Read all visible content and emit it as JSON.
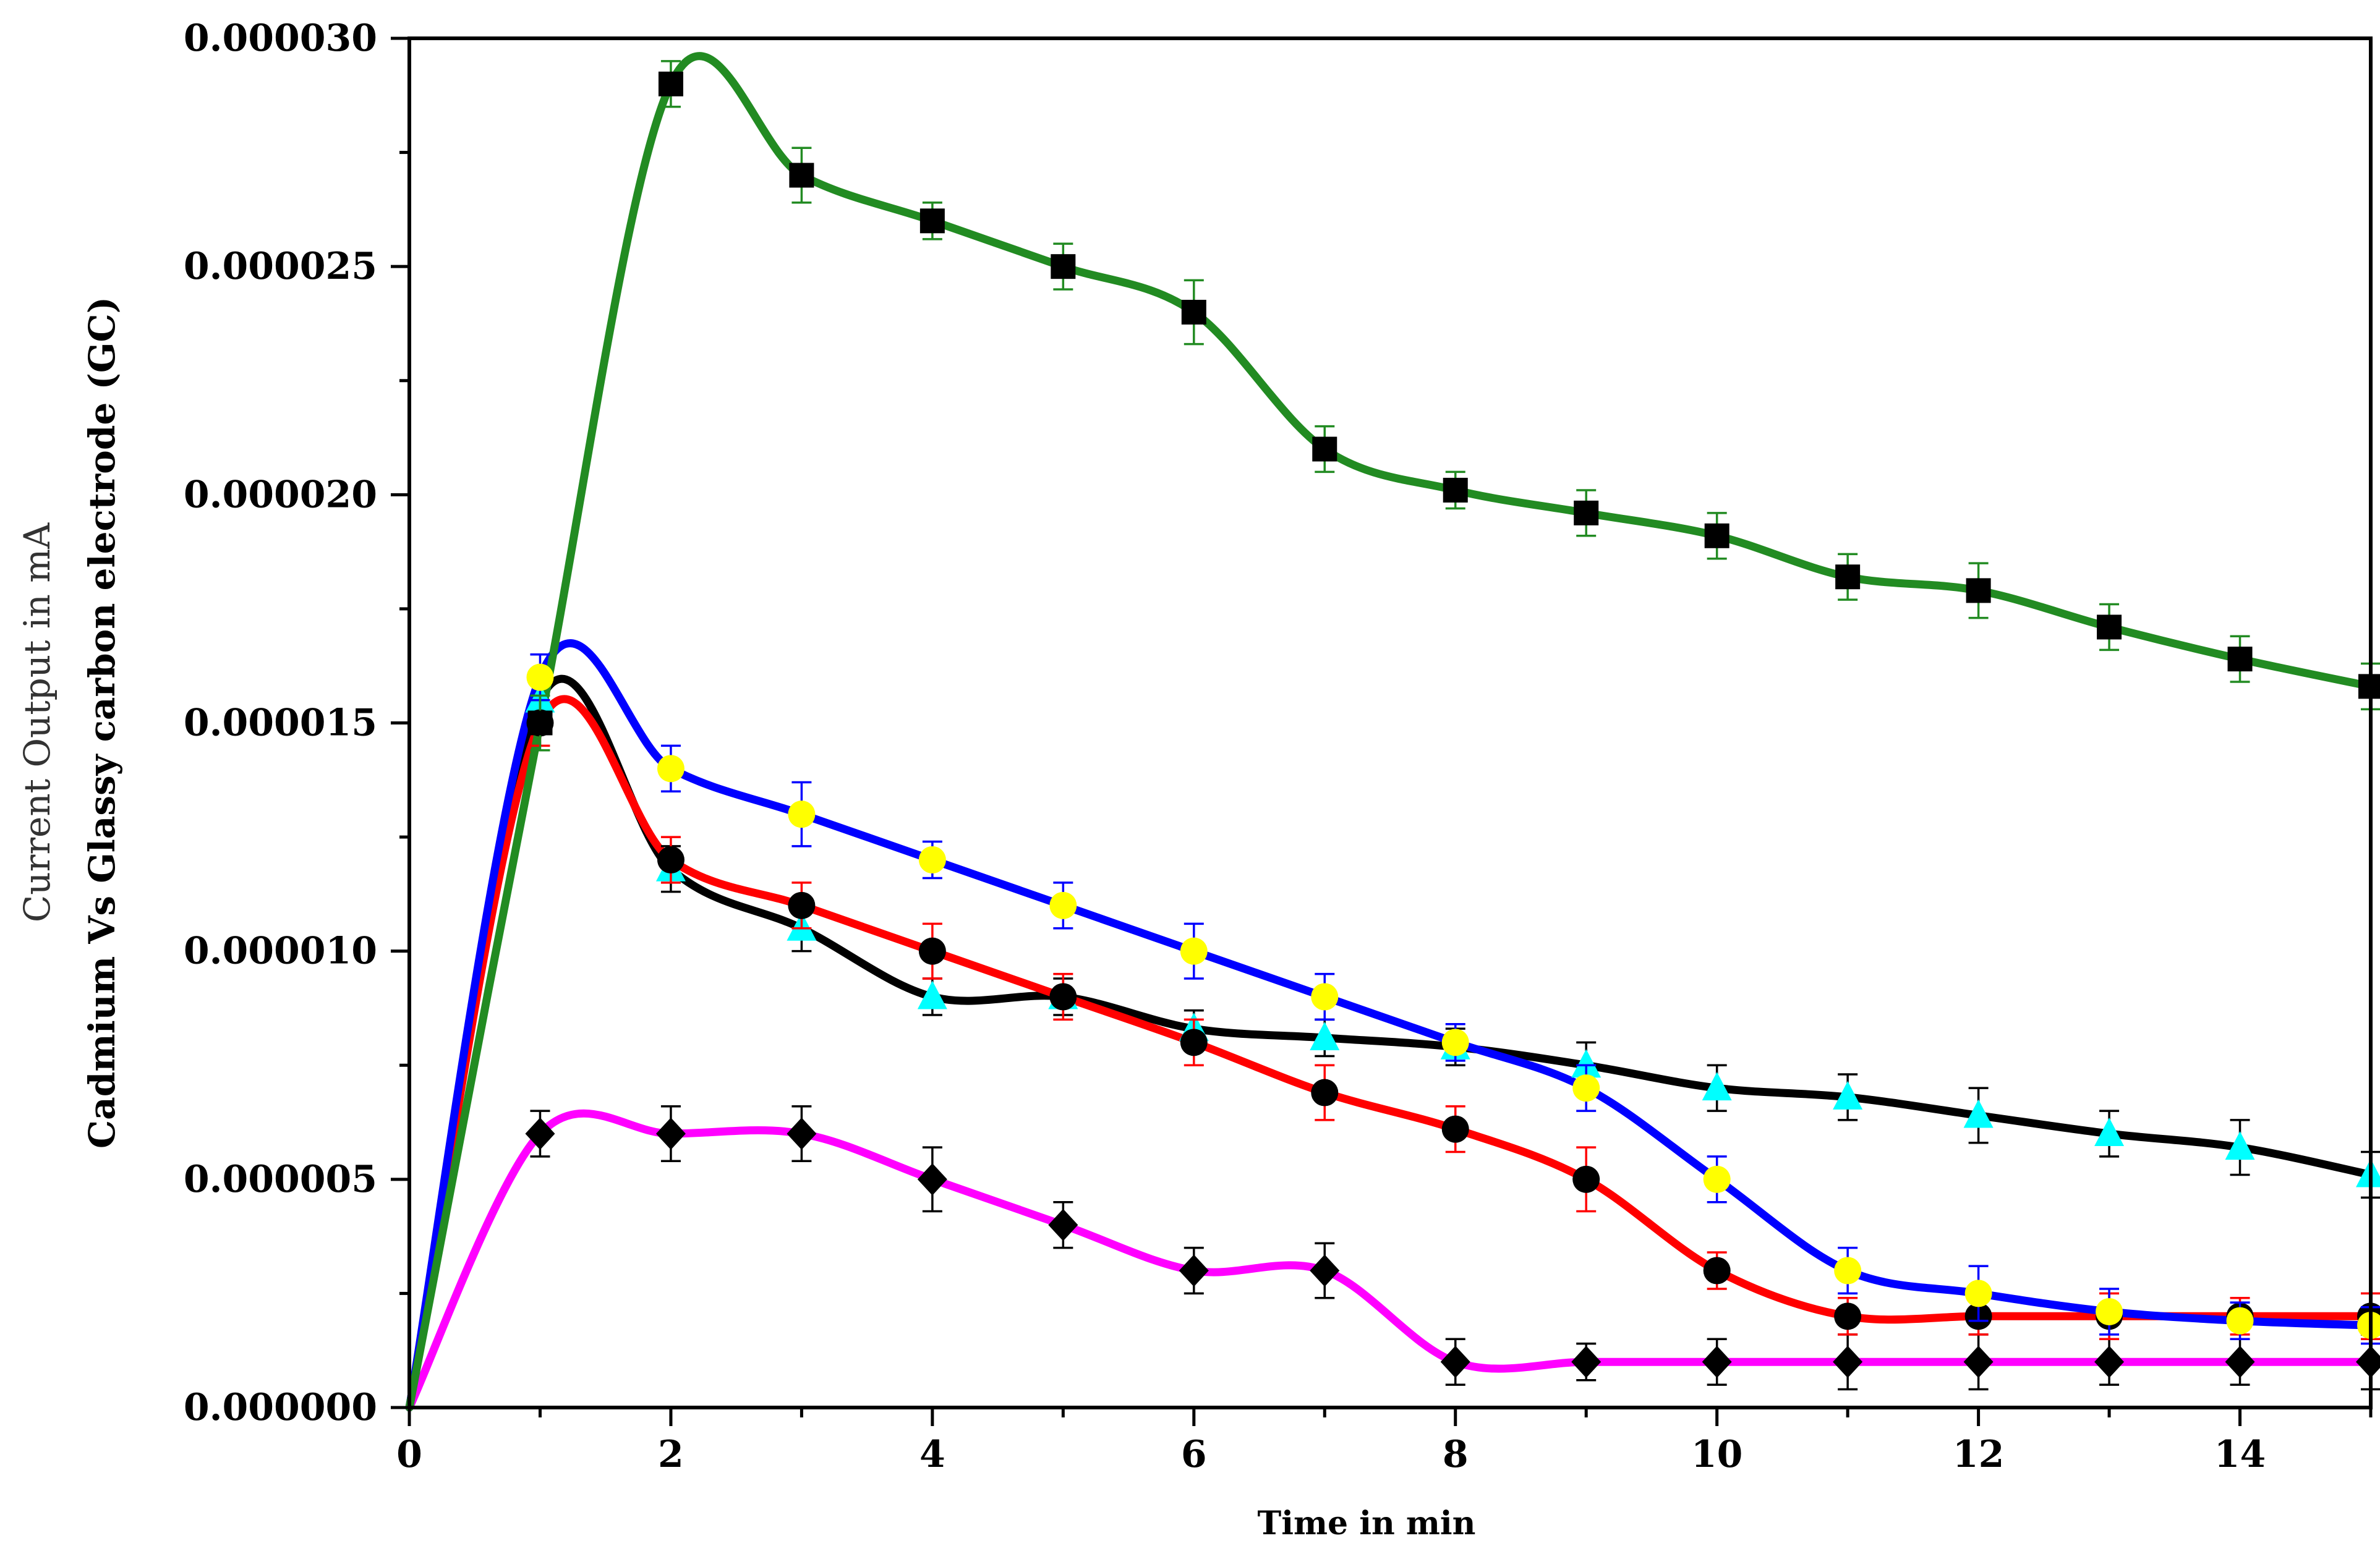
{
  "chart_data": {
    "type": "line",
    "title": "",
    "xlabel": "Time in min",
    "ylabel_line1": "Current Output in mA",
    "ylabel_line2": "Cadmium Vs Glassy carbon electrode (GC)",
    "xlim": [
      0,
      15
    ],
    "ylim": [
      0,
      3e-05
    ],
    "x_ticks": [
      0,
      2,
      4,
      6,
      8,
      10,
      12,
      14
    ],
    "x_tick_labels": [
      "0",
      "2",
      "4",
      "6",
      "8",
      "10",
      "12",
      "14"
    ],
    "y_ticks": [
      0,
      5e-06,
      1e-05,
      1.5e-05,
      2e-05,
      2.5e-05,
      3e-05
    ],
    "y_tick_labels": [
      "0.000000",
      "0.000005",
      "0.000010",
      "0.000015",
      "0.000020",
      "0.000025",
      "0.000030"
    ],
    "grid": false,
    "legend": "none",
    "series": [
      {
        "name": "green-squares",
        "color": "#228B22",
        "marker": "square",
        "marker_color": "#000000",
        "errbar_color": "#228B22",
        "x": [
          0,
          1,
          2,
          3,
          4,
          5,
          6,
          7,
          8,
          9,
          10,
          11,
          12,
          13,
          14,
          15
        ],
        "y": [
          0,
          1.5e-05,
          2.9e-05,
          2.7e-05,
          2.6e-05,
          2.5e-05,
          2.4e-05,
          2.1e-05,
          2.01e-05,
          1.96e-05,
          1.91e-05,
          1.82e-05,
          1.79e-05,
          1.71e-05,
          1.64e-05,
          1.58e-05
        ],
        "err": [
          0,
          6e-07,
          5e-07,
          6e-07,
          4e-07,
          5e-07,
          7e-07,
          5e-07,
          4e-07,
          5e-07,
          5e-07,
          5e-07,
          6e-07,
          5e-07,
          5e-07,
          5e-07
        ]
      },
      {
        "name": "blue-circles",
        "color": "#0000FF",
        "marker": "circle",
        "marker_color": "#FFFF00",
        "errbar_color": "#0000FF",
        "x": [
          0,
          1,
          2,
          3,
          4,
          5,
          6,
          7,
          8,
          9,
          10,
          11,
          12,
          13,
          14,
          15
        ],
        "y": [
          0,
          1.6e-05,
          1.4e-05,
          1.3e-05,
          1.2e-05,
          1.1e-05,
          1e-05,
          9e-06,
          8e-06,
          7e-06,
          5e-06,
          3e-06,
          2.5e-06,
          2.1e-06,
          1.9e-06,
          1.8e-06
        ],
        "err": [
          0,
          5e-07,
          5e-07,
          7e-07,
          4e-07,
          5e-07,
          6e-07,
          5e-07,
          4e-07,
          5e-07,
          5e-07,
          5e-07,
          6e-07,
          5e-07,
          4e-07,
          4e-07
        ]
      },
      {
        "name": "red-circles",
        "color": "#FF0000",
        "marker": "circle",
        "marker_color": "#000000",
        "errbar_color": "#FF0000",
        "x": [
          0,
          1,
          2,
          3,
          4,
          5,
          6,
          7,
          8,
          9,
          10,
          11,
          12,
          13,
          14,
          15
        ],
        "y": [
          0,
          1.5e-05,
          1.2e-05,
          1.1e-05,
          1e-05,
          9e-06,
          8e-06,
          6.9e-06,
          6.1e-06,
          5e-06,
          3e-06,
          2e-06,
          2e-06,
          2e-06,
          2e-06,
          2e-06
        ],
        "err": [
          0,
          5e-07,
          5e-07,
          5e-07,
          6e-07,
          5e-07,
          5e-07,
          6e-07,
          5e-07,
          7e-07,
          4e-07,
          4e-07,
          4e-07,
          5e-07,
          4e-07,
          5e-07
        ]
      },
      {
        "name": "black-triangles",
        "color": "#000000",
        "marker": "triangle",
        "marker_color": "#00FFFF",
        "errbar_color": "#000000",
        "x": [
          0,
          1,
          2,
          3,
          4,
          5,
          6,
          7,
          8,
          9,
          10,
          11,
          12,
          13,
          14,
          15
        ],
        "y": [
          0,
          1.55e-05,
          1.18e-05,
          1.05e-05,
          9e-06,
          9e-06,
          8.3e-06,
          8.1e-06,
          7.9e-06,
          7.5e-06,
          7e-06,
          6.8e-06,
          6.4e-06,
          6e-06,
          5.7e-06,
          5.1e-06
        ],
        "err": [
          0,
          5e-07,
          5e-07,
          5e-07,
          4e-07,
          4e-07,
          4e-07,
          4e-07,
          4e-07,
          5e-07,
          5e-07,
          5e-07,
          6e-07,
          5e-07,
          6e-07,
          5e-07
        ]
      },
      {
        "name": "magenta-diamonds",
        "color": "#FF00FF",
        "marker": "diamond",
        "marker_color": "#000000",
        "errbar_color": "#000000",
        "x": [
          0,
          1,
          2,
          3,
          4,
          5,
          6,
          7,
          8,
          9,
          10,
          11,
          12,
          13,
          14,
          15
        ],
        "y": [
          0,
          6e-06,
          6e-06,
          6e-06,
          5e-06,
          4e-06,
          3e-06,
          3e-06,
          1e-06,
          1e-06,
          1e-06,
          1e-06,
          1e-06,
          1e-06,
          1e-06,
          1e-06
        ],
        "err": [
          0,
          5e-07,
          6e-07,
          6e-07,
          7e-07,
          5e-07,
          5e-07,
          6e-07,
          5e-07,
          4e-07,
          5e-07,
          6e-07,
          6e-07,
          5e-07,
          5e-07,
          6e-07
        ]
      }
    ]
  }
}
